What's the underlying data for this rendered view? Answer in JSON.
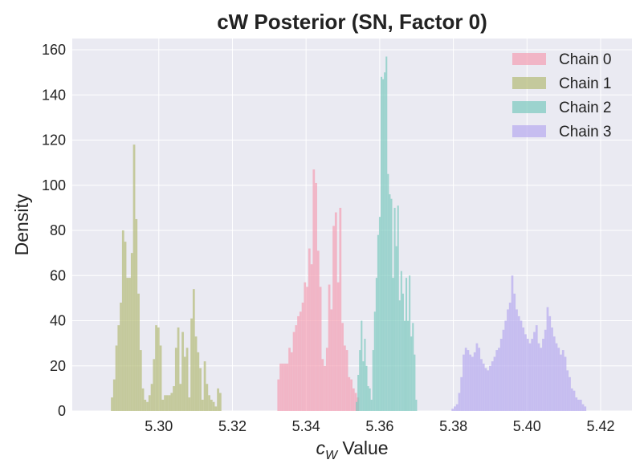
{
  "chart_data": {
    "type": "histogram",
    "title": "cW Posterior (SN, Factor 0)",
    "xlabel_symbol": "c",
    "xlabel_sub": "W",
    "xlabel_rest": " Value",
    "ylabel": "Density",
    "xlim": [
      5.2765,
      5.4285
    ],
    "ylim": [
      0,
      165
    ],
    "xticks": [
      5.3,
      5.32,
      5.34,
      5.36,
      5.38,
      5.4,
      5.42
    ],
    "xtick_labels": [
      "5.30",
      "5.32",
      "5.34",
      "5.36",
      "5.38",
      "5.40",
      "5.42"
    ],
    "yticks": [
      0,
      20,
      40,
      60,
      80,
      100,
      120,
      140,
      160
    ],
    "ytick_labels": [
      "0",
      "20",
      "40",
      "60",
      "80",
      "100",
      "120",
      "140",
      "160"
    ],
    "grid": true,
    "legend_position": "top-right",
    "background": "#eaeaf2",
    "series": [
      {
        "name": "Chain 0",
        "color": "#f4a1b4",
        "bin_start": 5.3322,
        "bin_width": 0.0006,
        "densities": [
          14,
          21,
          21,
          21,
          21,
          28,
          26,
          35,
          38,
          42,
          44,
          48,
          57,
          55,
          72,
          65,
          107,
          101,
          71,
          55,
          23,
          20,
          28,
          56,
          45,
          82,
          88,
          57,
          90,
          39,
          29,
          27,
          15,
          14,
          10,
          8,
          6
        ]
      },
      {
        "name": "Chain 1",
        "color": "#b5bd7a",
        "bin_start": 5.287,
        "bin_width": 0.0006,
        "densities": [
          6,
          14,
          29,
          38,
          48,
          80,
          75,
          59,
          59,
          70,
          118,
          85,
          52,
          27,
          10,
          5,
          4,
          7,
          12,
          23,
          38,
          37,
          29,
          5,
          7,
          7,
          7,
          8,
          11,
          28,
          37,
          12,
          35,
          24,
          28,
          6,
          41,
          54,
          33,
          26,
          19,
          5,
          22,
          12,
          7,
          5,
          4,
          2,
          10,
          8
        ]
      },
      {
        "name": "Chain 2",
        "color": "#7ecbbf",
        "bin_start": 5.3535,
        "bin_width": 0.00045,
        "densities": [
          4,
          16,
          27,
          40,
          22,
          32,
          20,
          11,
          10,
          5,
          27,
          44,
          59,
          78,
          86,
          148,
          147,
          150,
          157,
          105,
          96,
          94,
          59,
          90,
          73,
          91,
          49,
          62,
          52,
          40,
          59,
          40,
          60,
          33,
          39,
          25,
          5
        ]
      },
      {
        "name": "Chain 3",
        "color": "#b9acef",
        "bin_start": 5.3795,
        "bin_width": 0.0006,
        "densities": [
          1,
          2,
          3,
          8,
          15,
          25,
          28,
          27,
          25,
          24,
          26,
          30,
          28,
          23,
          21,
          19,
          18,
          20,
          22,
          24,
          27,
          28,
          32,
          36,
          40,
          45,
          48,
          60,
          52,
          45,
          42,
          40,
          37,
          34,
          32,
          30,
          32,
          35,
          38,
          30,
          28,
          32,
          36,
          46,
          42,
          37,
          33,
          30,
          28,
          25,
          27,
          24,
          18,
          15,
          10,
          9,
          6,
          5,
          5,
          3,
          2
        ]
      }
    ]
  }
}
